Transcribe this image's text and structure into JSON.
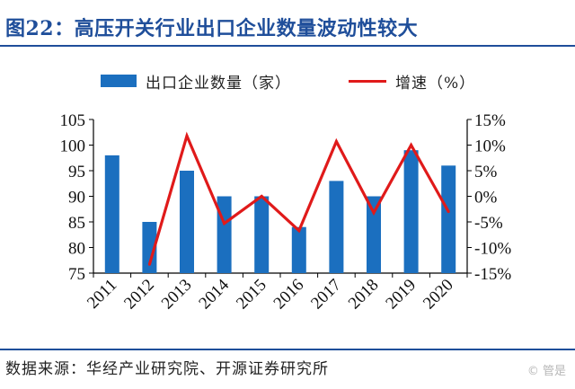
{
  "header": {
    "title": "图22：高压开关行业出口企业数量波动性较大"
  },
  "legend": {
    "bar_label": "出口企业数量（家）",
    "line_label": "增速（%）"
  },
  "source": "数据来源：华经产业研究院、开源证券研究所",
  "watermark": "© 管是",
  "colors": {
    "title": "#1f4e9a",
    "bar": "#1b6fbf",
    "line": "#e01a1a",
    "rule": "#1f4e9a"
  },
  "chart_data": {
    "type": "bar",
    "categories": [
      "2011",
      "2012",
      "2013",
      "2014",
      "2015",
      "2016",
      "2017",
      "2018",
      "2019",
      "2020"
    ],
    "series": [
      {
        "name": "出口企业数量（家）",
        "type": "bar",
        "axis": "left",
        "values": [
          98,
          85,
          95,
          90,
          90,
          84,
          93,
          90,
          99,
          96
        ]
      },
      {
        "name": "增速（%）",
        "type": "line",
        "axis": "right",
        "values": [
          null,
          -13.3,
          11.8,
          -5.3,
          0.0,
          -6.7,
          10.7,
          -3.2,
          10.0,
          -3.0
        ]
      }
    ],
    "y_left": {
      "range": [
        75,
        105
      ],
      "ticks": [
        105,
        100,
        95,
        90,
        85,
        80,
        75
      ],
      "tick_labels": [
        "105",
        "100",
        "95",
        "90",
        "85",
        "80",
        "75"
      ]
    },
    "y_right": {
      "range": [
        -15,
        15
      ],
      "ticks": [
        15,
        10,
        5,
        0,
        -5,
        -10,
        -15
      ],
      "tick_labels": [
        "15%",
        "10%",
        "5%",
        "0%",
        "-5%",
        "-10%",
        "-15%"
      ]
    },
    "grid": false,
    "legend_position": "top"
  }
}
